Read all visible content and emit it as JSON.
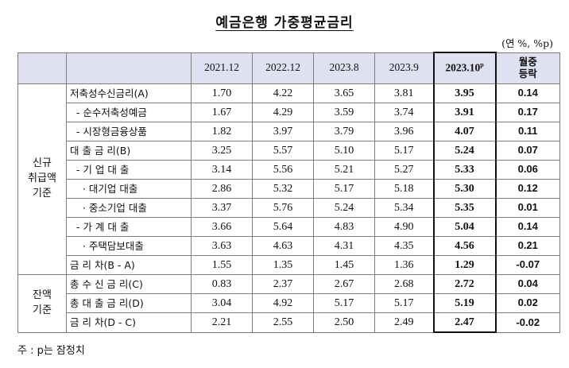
{
  "title": "예금은행 가중평균금리",
  "unit": "(연 %, %p)",
  "headers": {
    "columns": [
      "2021.12",
      "2022.12",
      "2023.8",
      "2023.9"
    ],
    "current": "2023.10",
    "current_sup": "p",
    "change": "월중\n등락"
  },
  "groups": {
    "new": "신규\n취급액\n기준",
    "balance": "잔액\n기준"
  },
  "rows_new": [
    {
      "label": "저축성수신금리(A)",
      "values": [
        "1.70",
        "4.22",
        "3.65",
        "3.81"
      ],
      "current": "3.95",
      "change": "0.14"
    },
    {
      "label": "  - 순수저축성예금",
      "values": [
        "1.67",
        "4.29",
        "3.59",
        "3.74"
      ],
      "current": "3.91",
      "change": "0.17"
    },
    {
      "label": "  - 시장형금융상품",
      "values": [
        "1.82",
        "3.97",
        "3.79",
        "3.96"
      ],
      "current": "4.07",
      "change": "0.11"
    },
    {
      "label": "대 출 금 리(B)",
      "values": [
        "3.25",
        "5.57",
        "5.10",
        "5.17"
      ],
      "current": "5.24",
      "change": "0.07"
    },
    {
      "label": "  - 기 업 대 출",
      "values": [
        "3.14",
        "5.56",
        "5.21",
        "5.27"
      ],
      "current": "5.33",
      "change": "0.06"
    },
    {
      "label": "    · 대기업 대출",
      "values": [
        "2.86",
        "5.32",
        "5.17",
        "5.18"
      ],
      "current": "5.30",
      "change": "0.12"
    },
    {
      "label": "    · 중소기업 대출",
      "values": [
        "3.37",
        "5.76",
        "5.24",
        "5.34"
      ],
      "current": "5.35",
      "change": "0.01"
    },
    {
      "label": "  - 가 계 대 출",
      "values": [
        "3.66",
        "5.64",
        "4.83",
        "4.90"
      ],
      "current": "5.04",
      "change": "0.14"
    },
    {
      "label": "    · 주택담보대출",
      "values": [
        "3.63",
        "4.63",
        "4.31",
        "4.35"
      ],
      "current": "4.56",
      "change": "0.21"
    },
    {
      "label": "금 리 차(B - A)",
      "values": [
        "1.55",
        "1.35",
        "1.45",
        "1.36"
      ],
      "current": "1.29",
      "change": "-0.07"
    }
  ],
  "rows_balance": [
    {
      "label": "총 수 신 금 리(C)",
      "values": [
        "0.83",
        "2.37",
        "2.67",
        "2.68"
      ],
      "current": "2.72",
      "change": "0.04"
    },
    {
      "label": "총 대 출 금 리(D)",
      "values": [
        "3.04",
        "4.92",
        "5.17",
        "5.17"
      ],
      "current": "5.19",
      "change": "0.02"
    },
    {
      "label": "금 리 차(D - C)",
      "values": [
        "2.21",
        "2.55",
        "2.50",
        "2.49"
      ],
      "current": "2.47",
      "change": "-0.02"
    }
  ],
  "note": "주 : p는 잠정치"
}
